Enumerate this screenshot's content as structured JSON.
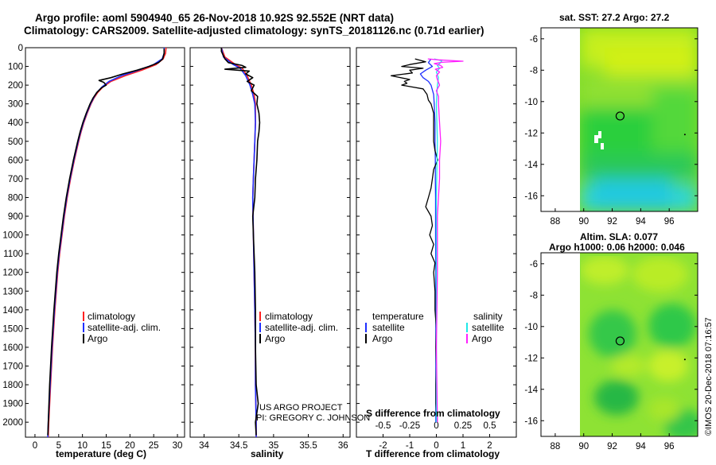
{
  "titles": {
    "line1": "Argo profile: aoml 5904940_65 26-Nov-2018 10.92S 92.552E (NRT data)",
    "line2": "Climatology: CARS2009. Satellite-adjusted climatology: synTS_20181126.nc (0.71d earlier)",
    "sst_title": "sat. SST: 27.2 Argo: 27.2",
    "sla_title1": "Altim. SLA: 0.077",
    "sla_title2": "Argo h1000: 0.06 h2000: 0.046",
    "side_text": "©IMOS 20-Dec-2018 07:16:57",
    "credit1": "US ARGO PROJECT",
    "credit2": "PI: GREGORY C. JOHNSON"
  },
  "colors": {
    "climatology": "#ff2020",
    "satellite": "#1f2fff",
    "argo": "#000000",
    "sal_satellite": "#20e8e8",
    "sal_argo": "#ff20ff"
  },
  "chart_data": [
    {
      "type": "line",
      "id": "temperature",
      "xlabel": "temperature (deg C)",
      "ylabel": "",
      "xlim": [
        -2,
        31.5
      ],
      "ylim": [
        2080,
        0
      ],
      "xticks": [
        "0",
        "5",
        "10",
        "15",
        "20",
        "25",
        "30"
      ],
      "xtick_values": [
        0,
        5,
        10,
        15,
        20,
        25,
        30
      ],
      "yticks": [
        "0",
        "100",
        "200",
        "300",
        "400",
        "500",
        "600",
        "700",
        "800",
        "900",
        "1000",
        "1100",
        "1200",
        "1300",
        "1400",
        "1500",
        "1600",
        "1700",
        "1800",
        "1900",
        "2000"
      ],
      "ytick_values": [
        0,
        100,
        200,
        300,
        400,
        500,
        600,
        700,
        800,
        900,
        1000,
        1100,
        1200,
        1300,
        1400,
        1500,
        1600,
        1700,
        1800,
        1900,
        2000
      ],
      "legend": [
        "climatology",
        "satellite-adj. clim.",
        "Argo"
      ],
      "series": [
        {
          "name": "climatology",
          "depth": [
            0,
            30,
            60,
            90,
            120,
            150,
            180,
            210,
            240,
            270,
            300,
            350,
            400,
            450,
            500,
            600,
            700,
            800,
            900,
            1000,
            1100,
            1200,
            1400,
            1600,
            1800,
            2000,
            2080
          ],
          "values": [
            27.6,
            27.5,
            27.0,
            25.5,
            22.5,
            19.0,
            16.0,
            14.3,
            13.2,
            12.4,
            11.8,
            11.0,
            10.3,
            9.7,
            9.2,
            8.3,
            7.5,
            6.8,
            6.2,
            5.7,
            5.2,
            4.8,
            4.2,
            3.7,
            3.3,
            2.9,
            2.8
          ]
        },
        {
          "name": "satellite-adj. clim.",
          "depth": [
            0,
            30,
            60,
            90,
            120,
            150,
            180,
            210,
            240,
            270,
            300,
            350,
            400,
            450,
            500,
            600,
            700,
            800,
            900,
            1000,
            1100,
            1200,
            1400,
            1600,
            1800,
            2000,
            2080
          ],
          "values": [
            27.2,
            27.2,
            26.8,
            25.0,
            21.8,
            18.2,
            15.6,
            14.1,
            13.0,
            12.3,
            11.7,
            10.9,
            10.2,
            9.6,
            9.1,
            8.2,
            7.4,
            6.7,
            6.1,
            5.6,
            5.1,
            4.7,
            4.1,
            3.6,
            3.2,
            2.8,
            2.7
          ]
        },
        {
          "name": "Argo",
          "depth": [
            5,
            30,
            60,
            80,
            100,
            120,
            140,
            160,
            175,
            185,
            200,
            215,
            240,
            270,
            300,
            350,
            400,
            450,
            500,
            600,
            700,
            800,
            900,
            1000,
            1100,
            1200,
            1400,
            1600,
            1800,
            2000,
            2070
          ],
          "values": [
            27.2,
            27.2,
            26.9,
            26.0,
            24.0,
            21.5,
            18.5,
            16.0,
            13.5,
            14.5,
            15.0,
            14.0,
            13.0,
            12.2,
            11.6,
            10.8,
            10.1,
            9.5,
            9.0,
            8.1,
            7.3,
            6.6,
            6.0,
            5.5,
            5.0,
            4.6,
            4.0,
            3.5,
            3.1,
            2.8,
            2.7
          ]
        }
      ]
    },
    {
      "type": "line",
      "id": "salinity",
      "xlabel": "salinity",
      "xlim": [
        33.8,
        36.1
      ],
      "ylim": [
        2080,
        0
      ],
      "xticks": [
        "34",
        "34.5",
        "35",
        "35.5",
        "36"
      ],
      "xtick_values": [
        34,
        34.5,
        35,
        35.5,
        36
      ],
      "legend": [
        "climatology",
        "satellite-adj. clim.",
        "Argo"
      ],
      "series": [
        {
          "name": "climatology",
          "depth": [
            0,
            50,
            90,
            110,
            150,
            200,
            250,
            300,
            400,
            500,
            600,
            700,
            800,
            1000,
            1200,
            1400,
            1600,
            1800,
            2000,
            2080
          ],
          "values": [
            34.25,
            34.3,
            34.45,
            34.55,
            34.62,
            34.68,
            34.72,
            34.74,
            34.74,
            34.73,
            34.72,
            34.71,
            34.7,
            34.71,
            34.72,
            34.73,
            34.74,
            34.74,
            34.75,
            34.75
          ]
        },
        {
          "name": "satellite-adj. clim.",
          "depth": [
            0,
            50,
            90,
            110,
            150,
            200,
            250,
            300,
            400,
            500,
            600,
            700,
            800,
            1000,
            1200,
            1400,
            1600,
            1800,
            2000,
            2080
          ],
          "values": [
            34.25,
            34.28,
            34.42,
            34.52,
            34.6,
            34.66,
            34.7,
            34.73,
            34.74,
            34.73,
            34.72,
            34.71,
            34.7,
            34.71,
            34.72,
            34.73,
            34.74,
            34.74,
            34.75,
            34.75
          ]
        },
        {
          "name": "Argo",
          "depth": [
            0,
            20,
            60,
            80,
            95,
            105,
            115,
            125,
            140,
            160,
            180,
            200,
            230,
            260,
            300,
            350,
            400,
            450,
            500,
            600,
            700,
            800,
            900,
            1000,
            1100,
            1200,
            1400,
            1600,
            1800,
            1900,
            2000,
            2070
          ],
          "values": [
            34.25,
            34.25,
            34.3,
            34.35,
            34.55,
            34.6,
            34.3,
            34.65,
            34.6,
            34.7,
            34.62,
            34.72,
            34.68,
            34.77,
            34.76,
            34.79,
            34.8,
            34.79,
            34.77,
            34.76,
            34.74,
            34.73,
            34.7,
            34.71,
            34.72,
            34.73,
            34.74,
            34.74,
            34.75,
            34.78,
            34.74,
            34.75
          ]
        }
      ]
    },
    {
      "type": "line",
      "id": "difference",
      "xlabel": "T difference from climatology",
      "xlabel2": "S difference from climatology",
      "xlim": [
        -3,
        3
      ],
      "ylim": [
        2080,
        0
      ],
      "xticks": [
        "-2",
        "-1",
        "0",
        "1",
        "2"
      ],
      "xtick_values": [
        -2,
        -1,
        0,
        1,
        2
      ],
      "xticks2": [
        "-0.5",
        "-0.25",
        "0",
        "0.25",
        "0.5"
      ],
      "xtick_values2": [
        -0.5,
        -0.25,
        0,
        0.25,
        0.5
      ],
      "legend_left_title": "temperature",
      "legend_right_title": "salinity",
      "legend": [
        "satellite",
        "Argo",
        "satellite",
        "Argo"
      ],
      "series": [
        {
          "name": "T satellite",
          "depth": [
            60,
            80,
            100,
            120,
            140,
            160,
            180,
            200,
            250,
            300,
            400,
            500,
            600,
            700,
            800,
            1000,
            1200,
            1400,
            1600,
            1800,
            2000
          ],
          "values": [
            -0.2,
            -0.3,
            -0.15,
            -0.4,
            -0.6,
            -0.5,
            -0.3,
            -0.2,
            -0.1,
            -0.08,
            -0.05,
            -0.05,
            -0.04,
            -0.04,
            -0.03,
            -0.03,
            -0.02,
            -0.02,
            -0.02,
            -0.02,
            -0.02
          ]
        },
        {
          "name": "T Argo",
          "depth": [
            60,
            75,
            90,
            100,
            110,
            120,
            135,
            150,
            170,
            180,
            190,
            200,
            220,
            250,
            280,
            300,
            350,
            400,
            450,
            500,
            550,
            600,
            650,
            700,
            750,
            800,
            850,
            900,
            950,
            1000,
            1050,
            1100,
            1150,
            1200,
            1300,
            1400,
            1500,
            1600,
            1700,
            1800,
            1900,
            2000
          ],
          "values": [
            -0.8,
            -0.4,
            -1.0,
            -1.3,
            -0.5,
            -1.0,
            -0.9,
            -1.7,
            -1.0,
            -1.2,
            -1.1,
            -1.3,
            -0.5,
            -0.35,
            -0.3,
            -0.2,
            -0.1,
            -0.1,
            -0.1,
            -0.1,
            -0.05,
            0.05,
            -0.1,
            -0.15,
            -0.2,
            -0.3,
            -0.4,
            -0.2,
            -0.15,
            -0.25,
            -0.1,
            -0.2,
            -0.05,
            -0.1,
            -0.05,
            -0.05,
            0.0,
            -0.02,
            0.0,
            -0.02,
            -0.02,
            0.02
          ]
        },
        {
          "name": "S satellite",
          "depth": [
            60,
            70,
            80,
            95,
            110,
            130,
            160,
            200,
            300,
            500,
            800,
            1200,
            1600,
            2000
          ],
          "values": [
            -0.02,
            0.05,
            0.04,
            0.01,
            0.03,
            0.0,
            0.02,
            0.01,
            0.0,
            0.01,
            0.0,
            0.0,
            0.0,
            0.0
          ]
        },
        {
          "name": "S Argo",
          "depth": [
            60,
            65,
            72,
            78,
            85,
            95,
            105,
            115,
            130,
            150,
            170,
            200,
            230,
            260,
            300,
            400,
            500,
            600,
            700,
            900,
            1200,
            1600,
            2000
          ],
          "values": [
            -0.08,
            0.02,
            0.25,
            0.05,
            -0.02,
            0.04,
            0.06,
            -0.01,
            0.03,
            0.0,
            0.01,
            0.03,
            0.0,
            0.02,
            0.02,
            0.03,
            0.04,
            0.03,
            0.03,
            0.01,
            0.01,
            0.0,
            0.01
          ]
        }
      ]
    },
    {
      "type": "heatmap",
      "id": "sst_map",
      "title": "sat. SST: 27.2 Argo: 27.2",
      "xlim": [
        87,
        98
      ],
      "ylim": [
        -17,
        -5.3
      ],
      "xticks": [
        "88",
        "90",
        "92",
        "94",
        "96"
      ],
      "xtick_values": [
        88,
        90,
        92,
        94,
        96
      ],
      "yticks": [
        "-6",
        "-8",
        "-10",
        "-12",
        "-14",
        "-16"
      ],
      "ytick_values": [
        -6,
        -8,
        -10,
        -12,
        -14,
        -16
      ],
      "argo_position": [
        92.552,
        -10.92
      ]
    },
    {
      "type": "heatmap",
      "id": "sla_map",
      "title": "Altim. SLA: 0.077",
      "xlim": [
        87,
        98
      ],
      "ylim": [
        -17,
        -5.3
      ],
      "xticks": [
        "88",
        "90",
        "92",
        "94",
        "96"
      ],
      "xtick_values": [
        88,
        90,
        92,
        94,
        96
      ],
      "yticks": [
        "-6",
        "-8",
        "-10",
        "-12",
        "-14",
        "-16"
      ],
      "ytick_values": [
        -6,
        -8,
        -10,
        -12,
        -14,
        -16
      ],
      "argo_position": [
        92.552,
        -10.92
      ]
    }
  ]
}
